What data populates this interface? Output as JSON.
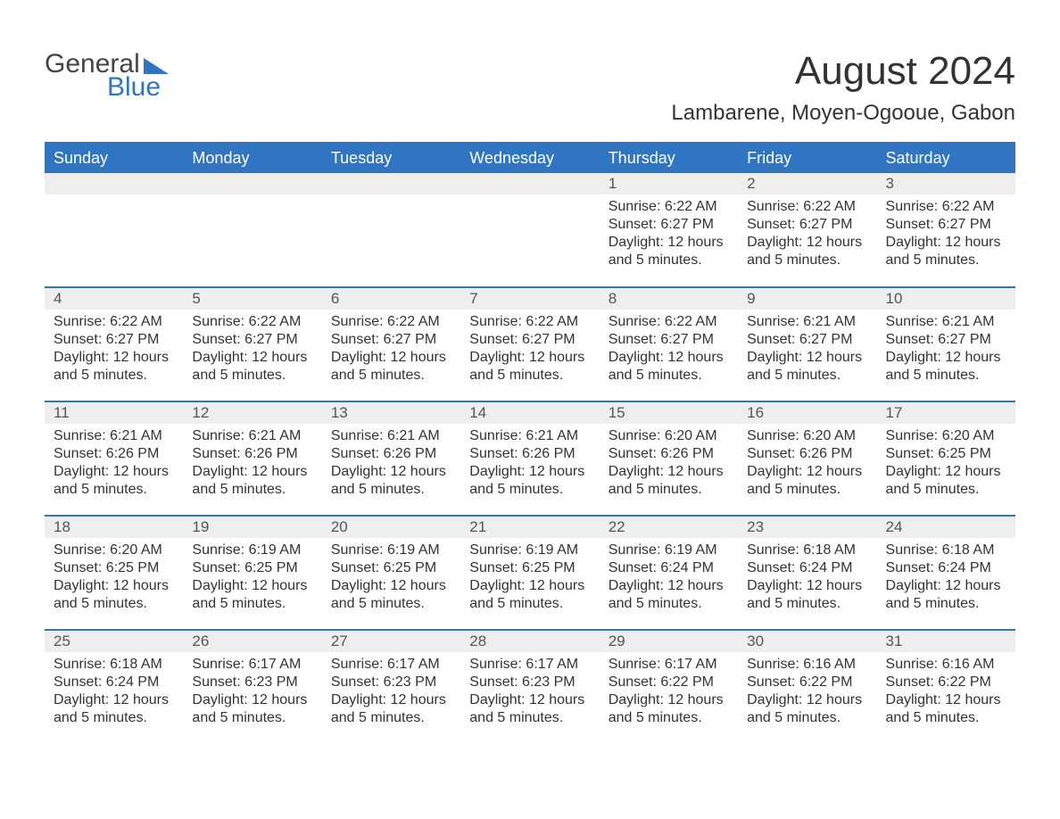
{
  "logo": {
    "word1": "General",
    "word2": "Blue"
  },
  "title": "August 2024",
  "location": "Lambarene, Moyen-Ogooue, Gabon",
  "colors": {
    "header_bg": "#2f75c2",
    "header_text": "#ffffff",
    "daynum_bg": "#eeeeee",
    "row_divider": "#2f75c2",
    "body_text": "#333333",
    "page_bg": "#ffffff"
  },
  "typography": {
    "title_fontsize": 44,
    "location_fontsize": 24,
    "header_fontsize": 18,
    "cell_fontsize": 16
  },
  "weekdays": [
    "Sunday",
    "Monday",
    "Tuesday",
    "Wednesday",
    "Thursday",
    "Friday",
    "Saturday"
  ],
  "weeks": [
    [
      {
        "day": "",
        "sunrise": "",
        "sunset": "",
        "daylight": ""
      },
      {
        "day": "",
        "sunrise": "",
        "sunset": "",
        "daylight": ""
      },
      {
        "day": "",
        "sunrise": "",
        "sunset": "",
        "daylight": ""
      },
      {
        "day": "",
        "sunrise": "",
        "sunset": "",
        "daylight": ""
      },
      {
        "day": "1",
        "sunrise": "6:22 AM",
        "sunset": "6:27 PM",
        "daylight": "12 hours and 5 minutes."
      },
      {
        "day": "2",
        "sunrise": "6:22 AM",
        "sunset": "6:27 PM",
        "daylight": "12 hours and 5 minutes."
      },
      {
        "day": "3",
        "sunrise": "6:22 AM",
        "sunset": "6:27 PM",
        "daylight": "12 hours and 5 minutes."
      }
    ],
    [
      {
        "day": "4",
        "sunrise": "6:22 AM",
        "sunset": "6:27 PM",
        "daylight": "12 hours and 5 minutes."
      },
      {
        "day": "5",
        "sunrise": "6:22 AM",
        "sunset": "6:27 PM",
        "daylight": "12 hours and 5 minutes."
      },
      {
        "day": "6",
        "sunrise": "6:22 AM",
        "sunset": "6:27 PM",
        "daylight": "12 hours and 5 minutes."
      },
      {
        "day": "7",
        "sunrise": "6:22 AM",
        "sunset": "6:27 PM",
        "daylight": "12 hours and 5 minutes."
      },
      {
        "day": "8",
        "sunrise": "6:22 AM",
        "sunset": "6:27 PM",
        "daylight": "12 hours and 5 minutes."
      },
      {
        "day": "9",
        "sunrise": "6:21 AM",
        "sunset": "6:27 PM",
        "daylight": "12 hours and 5 minutes."
      },
      {
        "day": "10",
        "sunrise": "6:21 AM",
        "sunset": "6:27 PM",
        "daylight": "12 hours and 5 minutes."
      }
    ],
    [
      {
        "day": "11",
        "sunrise": "6:21 AM",
        "sunset": "6:26 PM",
        "daylight": "12 hours and 5 minutes."
      },
      {
        "day": "12",
        "sunrise": "6:21 AM",
        "sunset": "6:26 PM",
        "daylight": "12 hours and 5 minutes."
      },
      {
        "day": "13",
        "sunrise": "6:21 AM",
        "sunset": "6:26 PM",
        "daylight": "12 hours and 5 minutes."
      },
      {
        "day": "14",
        "sunrise": "6:21 AM",
        "sunset": "6:26 PM",
        "daylight": "12 hours and 5 minutes."
      },
      {
        "day": "15",
        "sunrise": "6:20 AM",
        "sunset": "6:26 PM",
        "daylight": "12 hours and 5 minutes."
      },
      {
        "day": "16",
        "sunrise": "6:20 AM",
        "sunset": "6:26 PM",
        "daylight": "12 hours and 5 minutes."
      },
      {
        "day": "17",
        "sunrise": "6:20 AM",
        "sunset": "6:25 PM",
        "daylight": "12 hours and 5 minutes."
      }
    ],
    [
      {
        "day": "18",
        "sunrise": "6:20 AM",
        "sunset": "6:25 PM",
        "daylight": "12 hours and 5 minutes."
      },
      {
        "day": "19",
        "sunrise": "6:19 AM",
        "sunset": "6:25 PM",
        "daylight": "12 hours and 5 minutes."
      },
      {
        "day": "20",
        "sunrise": "6:19 AM",
        "sunset": "6:25 PM",
        "daylight": "12 hours and 5 minutes."
      },
      {
        "day": "21",
        "sunrise": "6:19 AM",
        "sunset": "6:25 PM",
        "daylight": "12 hours and 5 minutes."
      },
      {
        "day": "22",
        "sunrise": "6:19 AM",
        "sunset": "6:24 PM",
        "daylight": "12 hours and 5 minutes."
      },
      {
        "day": "23",
        "sunrise": "6:18 AM",
        "sunset": "6:24 PM",
        "daylight": "12 hours and 5 minutes."
      },
      {
        "day": "24",
        "sunrise": "6:18 AM",
        "sunset": "6:24 PM",
        "daylight": "12 hours and 5 minutes."
      }
    ],
    [
      {
        "day": "25",
        "sunrise": "6:18 AM",
        "sunset": "6:24 PM",
        "daylight": "12 hours and 5 minutes."
      },
      {
        "day": "26",
        "sunrise": "6:17 AM",
        "sunset": "6:23 PM",
        "daylight": "12 hours and 5 minutes."
      },
      {
        "day": "27",
        "sunrise": "6:17 AM",
        "sunset": "6:23 PM",
        "daylight": "12 hours and 5 minutes."
      },
      {
        "day": "28",
        "sunrise": "6:17 AM",
        "sunset": "6:23 PM",
        "daylight": "12 hours and 5 minutes."
      },
      {
        "day": "29",
        "sunrise": "6:17 AM",
        "sunset": "6:22 PM",
        "daylight": "12 hours and 5 minutes."
      },
      {
        "day": "30",
        "sunrise": "6:16 AM",
        "sunset": "6:22 PM",
        "daylight": "12 hours and 5 minutes."
      },
      {
        "day": "31",
        "sunrise": "6:16 AM",
        "sunset": "6:22 PM",
        "daylight": "12 hours and 5 minutes."
      }
    ]
  ],
  "labels": {
    "sunrise": "Sunrise:",
    "sunset": "Sunset:",
    "daylight": "Daylight:"
  }
}
